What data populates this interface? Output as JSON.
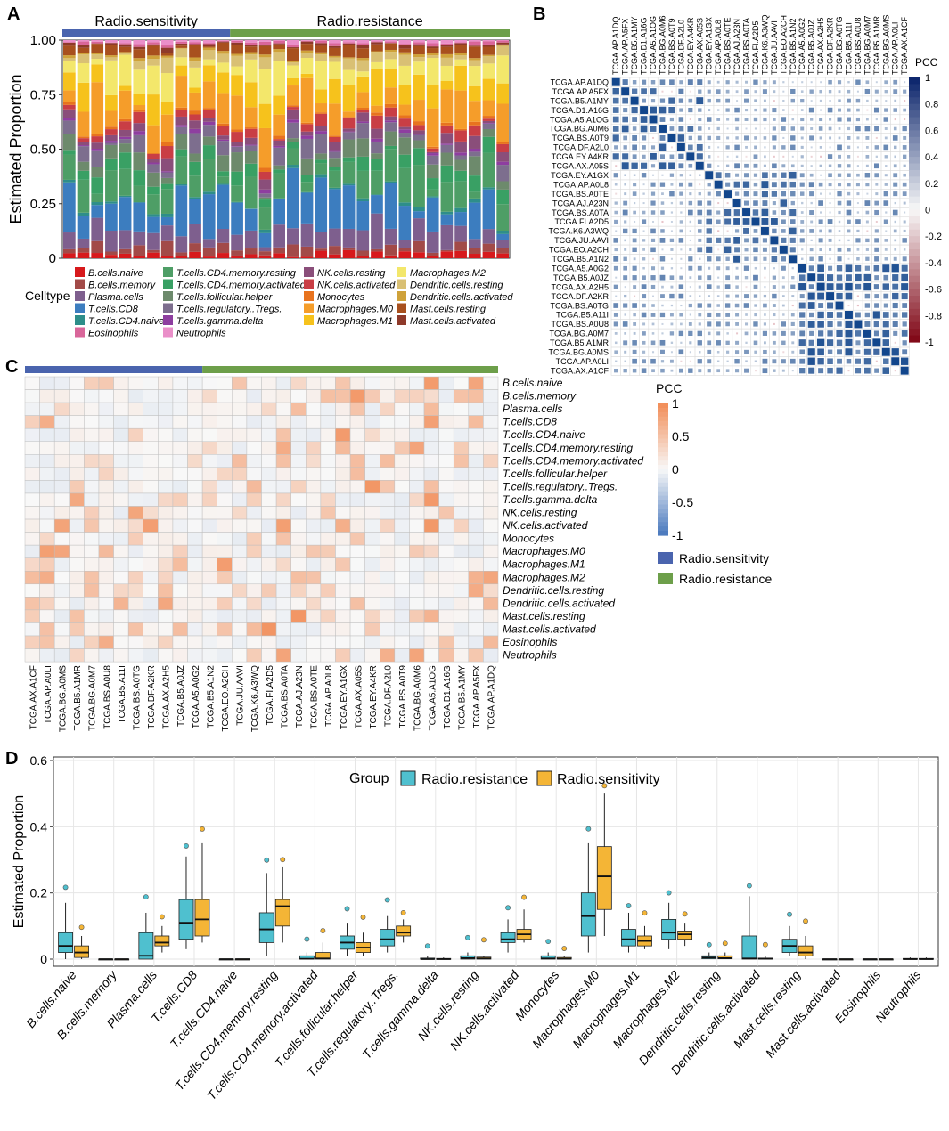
{
  "colors": {
    "sensitivity": "#4A64AE",
    "resistance": "#6D9F4A",
    "box_resistance": "#4FC0CF",
    "box_sensitivity": "#F4B536",
    "grid": "#E6E6E6"
  },
  "panel_labels": {
    "a": "A",
    "b": "B",
    "c": "C",
    "d": "D"
  },
  "legend_groups": {
    "sensitivity": "Radio.sensitivity",
    "resistance": "Radio.resistance"
  },
  "cell_types": [
    "B.cells.naive",
    "B.cells.memory",
    "Plasma.cells",
    "T.cells.CD8",
    "T.cells.CD4.naive",
    "T.cells.CD4.memory.resting",
    "T.cells.CD4.memory.activated",
    "T.cells.follicular.helper",
    "T.cells.regulatory..Tregs.",
    "T.cells.gamma.delta",
    "NK.cells.resting",
    "NK.cells.activated",
    "Monocytes",
    "Macrophages.M0",
    "Macrophages.M1",
    "Macrophages.M2",
    "Dendritic.cells.resting",
    "Dendritic.cells.activated",
    "Mast.cells.resting",
    "Mast.cells.activated",
    "Eosinophils",
    "Neutrophils"
  ],
  "cell_colors": [
    "#D7191C",
    "#A24A48",
    "#7E5F8E",
    "#3C7DBF",
    "#2E8E8A",
    "#4E9E66",
    "#39A064",
    "#6D8A6C",
    "#7D6E8E",
    "#8E3EA0",
    "#8A4E7A",
    "#C93E45",
    "#E8731E",
    "#F59D2A",
    "#F6C21C",
    "#F3E76B",
    "#D9C074",
    "#CFA23A",
    "#A8501E",
    "#8E3A2A",
    "#D9669A",
    "#EA8FC9"
  ],
  "samples": [
    "TCGA.AX.A1CF",
    "TCGA.AP.A0LI",
    "TCGA.BG.A0MS",
    "TCGA.B5.A1MR",
    "TCGA.BG.A0M7",
    "TCGA.BS.A0U8",
    "TCGA.B5.A11I",
    "TCGA.BS.A0TG",
    "TCGA.DF.A2KR",
    "TCGA.AX.A2H5",
    "TCGA.B5.A0JZ",
    "TCGA.A5.A0G2",
    "TCGA.B5.A1N2",
    "TCGA.EO.A2CH",
    "TCGA.JU.AAVI",
    "TCGA.K6.A3WQ",
    "TCGA.FI.A2D5",
    "TCGA.BS.A0TA",
    "TCGA.AJ.A23N",
    "TCGA.BS.A0TE",
    "TCGA.AP.A0L8",
    "TCGA.EY.A1GX",
    "TCGA.AX.A05S",
    "TCGA.EY.A4KR",
    "TCGA.DF.A2L0",
    "TCGA.BS.A0T9",
    "TCGA.BG.A0M6",
    "TCGA.A5.A1OG",
    "TCGA.D1.A16G",
    "TCGA.B5.A1MY",
    "TCGA.AP.A5FX",
    "TCGA.AP.A1DQ"
  ],
  "panel_a": {
    "group_labels": {
      "sensitivity": "Radio.sensitivity",
      "resistance": "Radio.resistance"
    },
    "legend_title": "Celltype"
  },
  "panel_b": {
    "legend_title": "PCC",
    "ticks": [
      "1",
      "0.8",
      "0.6",
      "0.4",
      "0.2",
      "0",
      "-0.2",
      "-0.4",
      "-0.6",
      "-0.8",
      "-1"
    ]
  },
  "panel_c": {
    "legend_title": "PCC",
    "ticks": [
      "1",
      "0.5",
      "0",
      "-0.5",
      "-1"
    ]
  },
  "chart_data": [
    {
      "panel": "A",
      "type": "bar",
      "stacked": true,
      "ylabel": "Estimated Proportion",
      "ylim": [
        0,
        1
      ],
      "yticks": [
        "0",
        "0.25",
        "0.50",
        "0.75",
        "1.00"
      ],
      "n_samples": 32,
      "n_sensitivity": 12
    },
    {
      "panel": "B",
      "type": "heatmap",
      "description": "sample-sample correlation matrix, circle markers",
      "rows": "samples (reverse order)",
      "zlim": [
        -1,
        1
      ]
    },
    {
      "panel": "C",
      "type": "heatmap",
      "rows": "cell_types",
      "columns": "samples",
      "zlim": [
        -1,
        1
      ]
    },
    {
      "panel": "D",
      "type": "box",
      "title": "",
      "ylabel": "Estimated Proportion",
      "ylim": [
        0,
        0.6
      ],
      "yticks": [
        "0",
        "0.2",
        "0.4",
        "0.6"
      ],
      "legend_title": "Group",
      "series": [
        {
          "name": "Radio.resistance",
          "boxes": [
            [
              0.0,
              0.02,
              0.04,
              0.08,
              0.17
            ],
            [
              0,
              0,
              0,
              0,
              0
            ],
            [
              0,
              0,
              0.01,
              0.08,
              0.14
            ],
            [
              0.03,
              0.06,
              0.11,
              0.18,
              0.31
            ],
            [
              0,
              0,
              0,
              0,
              0
            ],
            [
              0.01,
              0.05,
              0.09,
              0.14,
              0.26
            ],
            [
              0,
              0,
              0.001,
              0.01,
              0.02
            ],
            [
              0.01,
              0.03,
              0.05,
              0.07,
              0.11
            ],
            [
              0.02,
              0.04,
              0.06,
              0.09,
              0.13
            ],
            [
              0,
              0,
              0,
              0.003,
              0.01
            ],
            [
              0,
              0,
              0.003,
              0.01,
              0.02
            ],
            [
              0.02,
              0.05,
              0.06,
              0.08,
              0.12
            ],
            [
              0,
              0,
              0.002,
              0.01,
              0.02
            ],
            [
              0.02,
              0.07,
              0.13,
              0.2,
              0.35
            ],
            [
              0.02,
              0.04,
              0.06,
              0.09,
              0.14
            ],
            [
              0.03,
              0.06,
              0.08,
              0.12,
              0.17
            ],
            [
              0,
              0.001,
              0.005,
              0.01,
              0.02
            ],
            [
              0,
              0,
              0.002,
              0.07,
              0.19
            ],
            [
              0.01,
              0.02,
              0.04,
              0.06,
              0.1
            ],
            [
              0,
              0,
              0,
              0,
              0
            ],
            [
              0,
              0,
              0,
              0,
              0
            ],
            [
              0,
              0,
              0,
              0.002,
              0.005
            ]
          ]
        },
        {
          "name": "Radio.sensitivity",
          "boxes": [
            [
              0.0,
              0.005,
              0.02,
              0.04,
              0.07
            ],
            [
              0,
              0,
              0,
              0,
              0
            ],
            [
              0.02,
              0.04,
              0.05,
              0.07,
              0.1
            ],
            [
              0.05,
              0.07,
              0.12,
              0.18,
              0.35
            ],
            [
              0,
              0,
              0,
              0,
              0
            ],
            [
              0.05,
              0.1,
              0.16,
              0.18,
              0.28
            ],
            [
              0,
              0,
              0.002,
              0.02,
              0.05
            ],
            [
              0.01,
              0.02,
              0.035,
              0.05,
              0.08
            ],
            [
              0.05,
              0.07,
              0.08,
              0.1,
              0.12
            ],
            [
              0,
              0,
              0,
              0.002,
              0.005
            ],
            [
              0,
              0,
              0.002,
              0.006,
              0.01
            ],
            [
              0.05,
              0.06,
              0.075,
              0.09,
              0.15
            ],
            [
              0,
              0,
              0.001,
              0.005,
              0.01
            ],
            [
              0.07,
              0.15,
              0.25,
              0.34,
              0.5
            ],
            [
              0.03,
              0.04,
              0.055,
              0.07,
              0.1
            ],
            [
              0.04,
              0.06,
              0.075,
              0.085,
              0.11
            ],
            [
              0,
              0.001,
              0.003,
              0.01,
              0.02
            ],
            [
              0,
              0,
              0.001,
              0.003,
              0.01
            ],
            [
              0.0,
              0.01,
              0.02,
              0.04,
              0.07
            ],
            [
              0,
              0,
              0,
              0,
              0
            ],
            [
              0,
              0,
              0,
              0,
              0
            ],
            [
              0,
              0,
              0,
              0.002,
              0.005
            ]
          ]
        }
      ]
    }
  ]
}
